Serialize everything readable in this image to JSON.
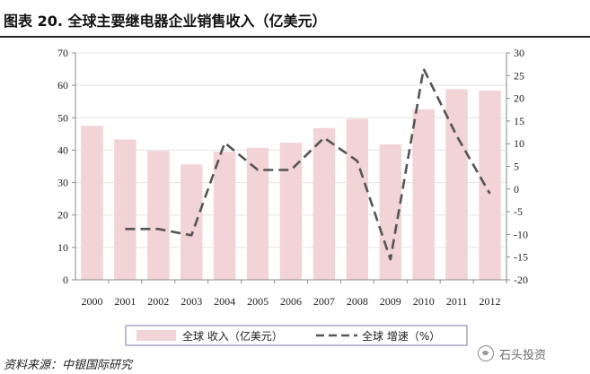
{
  "header": {
    "title": "图表 20. 全球主要继电器企业销售收入（亿美元）"
  },
  "chart_data": {
    "type": "bar",
    "categories": [
      "2000",
      "2001",
      "2002",
      "2003",
      "2004",
      "2005",
      "2006",
      "2007",
      "2008",
      "2009",
      "2010",
      "2011",
      "2012"
    ],
    "series": [
      {
        "name": "全球 收入（亿美元）",
        "type": "bar",
        "axis": "left",
        "values": [
          47.5,
          43.3,
          39.8,
          35.6,
          39.5,
          40.7,
          42.3,
          46.8,
          49.7,
          41.8,
          52.6,
          58.8,
          58.4
        ]
      },
      {
        "name": "全球 增速（%）",
        "type": "line",
        "axis": "right",
        "style": "dashed",
        "values": [
          null,
          -8.8,
          -8.8,
          -10.2,
          10.2,
          4.2,
          4.2,
          11.3,
          6.2,
          -15.5,
          26.5,
          11.7,
          -1.0
        ]
      }
    ],
    "y_left": {
      "ylim": [
        0,
        70
      ],
      "ticks": [
        "0",
        "10",
        "20",
        "30",
        "40",
        "50",
        "60",
        "70"
      ]
    },
    "y_right": {
      "ylim": [
        -20,
        30
      ],
      "ticks": [
        "-20",
        "-15",
        "-10",
        "-5",
        "0",
        "5",
        "10",
        "15",
        "20",
        "25",
        "30"
      ]
    },
    "grid": true,
    "legend_position": "bottom",
    "colors": {
      "bar": "#f2d3d6",
      "line": "#555555",
      "grid": "#e3e3e3",
      "axis": "#8a8a8a",
      "accent": "#7a7aa8"
    }
  },
  "source": {
    "text": "资料来源：中银国际研究"
  },
  "watermark": {
    "text": "石头投资",
    "icon": "wechat-icon"
  }
}
